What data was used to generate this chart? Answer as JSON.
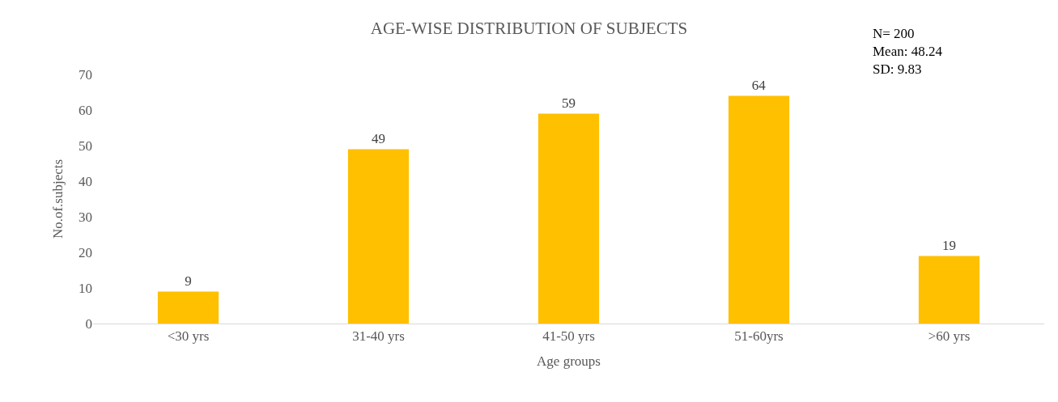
{
  "chart_data": {
    "type": "bar",
    "title": "AGE-WISE DISTRIBUTION OF SUBJECTS",
    "xlabel": "Age groups",
    "ylabel": "No.of.subjects",
    "categories": [
      "<30 yrs",
      "31-40 yrs",
      "41-50 yrs",
      "51-60yrs",
      ">60 yrs"
    ],
    "values": [
      9,
      49,
      59,
      64,
      19
    ],
    "color": "#ffc000",
    "ylim": [
      0,
      70
    ],
    "yticks": [
      0,
      10,
      20,
      30,
      40,
      50,
      60,
      70
    ],
    "grid": false,
    "data_labels": true,
    "annotations": [
      "N= 200\nMean: 48.24\nSD: 9.83"
    ]
  }
}
